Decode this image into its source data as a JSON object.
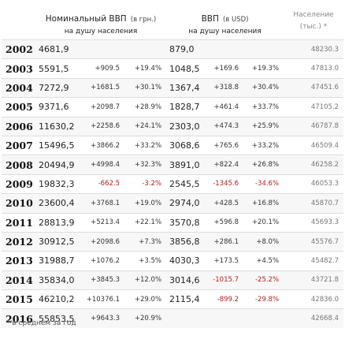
{
  "header": {
    "nominal_title": "Номинальный ВВП",
    "nominal_unit": "(в грн.)",
    "nominal_sub": "на душу населения",
    "usd_title": "ВВП",
    "usd_unit": "(в USD)",
    "usd_sub": "на душу населения",
    "population_title": "Население",
    "population_unit": "(тыс.) *"
  },
  "rows": [
    {
      "year": "2002",
      "nominal": "4681,9",
      "nominal_delta": "",
      "nominal_pct": "",
      "usd": "879,0",
      "usd_delta": "",
      "usd_pct": "",
      "population": "48230.3"
    },
    {
      "year": "2003",
      "nominal": "5591,5",
      "nominal_delta": "+909.5",
      "nominal_pct": "+19.4%",
      "usd": "1048,5",
      "usd_delta": "+169.6",
      "usd_pct": "+19.3%",
      "population": "47813.0"
    },
    {
      "year": "2004",
      "nominal": "7272,9",
      "nominal_delta": "+1681.5",
      "nominal_pct": "+30.1%",
      "usd": "1367,4",
      "usd_delta": "+318.8",
      "usd_pct": "+30.4%",
      "population": "47451.6"
    },
    {
      "year": "2005",
      "nominal": "9371,6",
      "nominal_delta": "+2098.7",
      "nominal_pct": "+28.9%",
      "usd": "1828,7",
      "usd_delta": "+461.4",
      "usd_pct": "+33.7%",
      "population": "47105.2"
    },
    {
      "year": "2006",
      "nominal": "11630,2",
      "nominal_delta": "+2258.6",
      "nominal_pct": "+24.1%",
      "usd": "2303,0",
      "usd_delta": "+474.3",
      "usd_pct": "+25.9%",
      "population": "46787.8"
    },
    {
      "year": "2007",
      "nominal": "15496,5",
      "nominal_delta": "+3866.2",
      "nominal_pct": "+33.2%",
      "usd": "3068,6",
      "usd_delta": "+765.6",
      "usd_pct": "+33.2%",
      "population": "46509.4"
    },
    {
      "year": "2008",
      "nominal": "20494,9",
      "nominal_delta": "+4998.4",
      "nominal_pct": "+32.3%",
      "usd": "3891,0",
      "usd_delta": "+822.4",
      "usd_pct": "+26.8%",
      "population": "46258.2"
    },
    {
      "year": "2009",
      "nominal": "19832,3",
      "nominal_delta": "-662.5",
      "nominal_pct": "-3.2%",
      "usd": "2545,5",
      "usd_delta": "-1345.6",
      "usd_pct": "-34.6%",
      "population": "46053.3"
    },
    {
      "year": "2010",
      "nominal": "23600,4",
      "nominal_delta": "+3768.1",
      "nominal_pct": "+19.0%",
      "usd": "2974,0",
      "usd_delta": "+428.5",
      "usd_pct": "+16.8%",
      "population": "45870.7"
    },
    {
      "year": "2011",
      "nominal": "28813,9",
      "nominal_delta": "+5213.4",
      "nominal_pct": "+22.1%",
      "usd": "3570,8",
      "usd_delta": "+596.8",
      "usd_pct": "+20.1%",
      "population": "45693.3"
    },
    {
      "year": "2012",
      "nominal": "30912,5",
      "nominal_delta": "+2098.6",
      "nominal_pct": "+7.3%",
      "usd": "3856,8",
      "usd_delta": "+286.1",
      "usd_pct": "+8.0%",
      "population": "45576.7"
    },
    {
      "year": "2013",
      "nominal": "31988,7",
      "nominal_delta": "+1076.2",
      "nominal_pct": "+3.5%",
      "usd": "4030,3",
      "usd_delta": "+173.5",
      "usd_pct": "+4.5%",
      "population": "45482.7"
    },
    {
      "year": "2014",
      "nominal": "35834,0",
      "nominal_delta": "+3845.3",
      "nominal_pct": "+12.0%",
      "usd": "3014,6",
      "usd_delta": "-1015.7",
      "usd_pct": "-25.2%",
      "population": "43721.8"
    },
    {
      "year": "2015",
      "nominal": "46210,2",
      "nominal_delta": "+10376.1",
      "nominal_pct": "+29.0%",
      "usd": "2115,4",
      "usd_delta": "-899.2",
      "usd_pct": "-29.8%",
      "population": "42836.0"
    },
    {
      "year": "2016",
      "nominal": "55853,5",
      "nominal_delta": "+9643.3",
      "nominal_pct": "+20.9%",
      "usd": "",
      "usd_delta": "",
      "usd_pct": "",
      "population": "42668.4"
    }
  ],
  "colors": {
    "negative": "#b22222",
    "row_alt": "#f7f7f7",
    "border": "#dcdcdc"
  },
  "footnote": "* в среднем за год"
}
